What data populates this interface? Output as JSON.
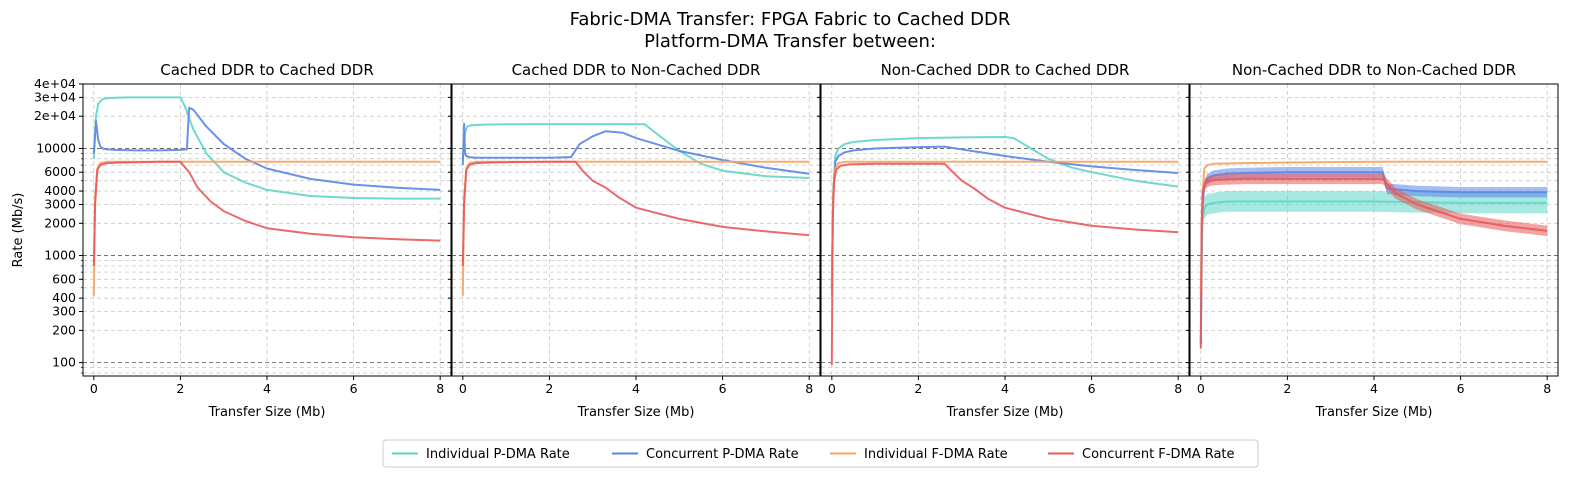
{
  "figure": {
    "title_line1": "Fabric-DMA Transfer: FPGA Fabric to Cached DDR",
    "title_line2": "Platform-DMA Transfer between:"
  },
  "legend": [
    {
      "label": "Individual P-DMA Rate",
      "color": "#5fd6c6"
    },
    {
      "label": "Concurrent P-DMA Rate",
      "color": "#5b86e5"
    },
    {
      "label": "Individual F-DMA Rate",
      "color": "#f7a25d"
    },
    {
      "label": "Concurrent F-DMA Rate",
      "color": "#e8595b"
    }
  ],
  "chart_data": [
    {
      "type": "line",
      "title": "Cached DDR to Cached DDR",
      "xlabel": "Transfer Size (Mb)",
      "ylabel": "Rate (Mb/s)",
      "xlim": [
        -0.25,
        8.25
      ],
      "xticks": [
        0,
        2,
        4,
        6,
        8
      ],
      "ylim": [
        75,
        40000
      ],
      "yscale": "log",
      "ytick_labels": [
        "100",
        "200",
        "300",
        "400",
        "600",
        "1000",
        "2000",
        "3000",
        "4000",
        "6000",
        "10000",
        "2e+04",
        "3e+04",
        "4e+04"
      ],
      "ytick_values": [
        100,
        200,
        300,
        400,
        600,
        1000,
        2000,
        3000,
        4000,
        6000,
        10000,
        20000,
        30000,
        40000
      ],
      "series": [
        {
          "name": "Individual P-DMA Rate",
          "x": [
            0,
            0.05,
            0.1,
            0.2,
            0.3,
            0.5,
            0.8,
            1.2,
            1.6,
            2.0,
            2.1,
            2.3,
            2.6,
            3.0,
            3.5,
            4.0,
            5.0,
            6.0,
            7.0,
            8.0
          ],
          "y": [
            8000,
            20000,
            26000,
            29000,
            29500,
            29800,
            30000,
            30000,
            30000,
            30000,
            25000,
            15000,
            9000,
            6000,
            4800,
            4100,
            3600,
            3450,
            3400,
            3400
          ]
        },
        {
          "name": "Concurrent P-DMA Rate",
          "x": [
            0,
            0.05,
            0.1,
            0.15,
            0.2,
            0.3,
            0.5,
            1.0,
            1.5,
            2.0,
            2.15,
            2.2,
            2.3,
            2.6,
            3.0,
            3.5,
            4.0,
            5.0,
            6.0,
            7.0,
            8.0
          ],
          "y": [
            9000,
            18000,
            12000,
            10500,
            10000,
            9800,
            9700,
            9600,
            9600,
            9700,
            9800,
            24000,
            23000,
            16000,
            11000,
            8000,
            6500,
            5200,
            4600,
            4300,
            4100
          ]
        },
        {
          "name": "Individual F-DMA Rate",
          "x": [
            0,
            0.03,
            0.08,
            0.15,
            0.3,
            1,
            2,
            4,
            6,
            8
          ],
          "y": [
            420,
            3500,
            6500,
            7300,
            7500,
            7500,
            7500,
            7500,
            7500,
            7500
          ]
        },
        {
          "name": "Concurrent F-DMA Rate",
          "x": [
            0,
            0.03,
            0.08,
            0.15,
            0.3,
            0.6,
            1.0,
            1.5,
            2.0,
            2.2,
            2.4,
            2.7,
            3.0,
            3.5,
            4.0,
            5.0,
            6.0,
            7.0,
            8.0
          ],
          "y": [
            800,
            3000,
            6300,
            7000,
            7300,
            7400,
            7450,
            7500,
            7500,
            6000,
            4300,
            3200,
            2600,
            2100,
            1800,
            1600,
            1480,
            1420,
            1380
          ]
        }
      ]
    },
    {
      "type": "line",
      "title": "Cached DDR to Non-Cached DDR",
      "xlabel": "Transfer Size (Mb)",
      "xlim": [
        -0.25,
        8.25
      ],
      "xticks": [
        0,
        2,
        4,
        6,
        8
      ],
      "ylim": [
        75,
        40000
      ],
      "yscale": "log",
      "series": [
        {
          "name": "Individual P-DMA Rate",
          "x": [
            0,
            0.05,
            0.1,
            0.2,
            0.5,
            1.0,
            2.0,
            3.0,
            4.0,
            4.2,
            4.5,
            5.0,
            5.5,
            6.0,
            7.0,
            8.0
          ],
          "y": [
            8000,
            14000,
            16000,
            16500,
            16700,
            16800,
            16900,
            16900,
            16900,
            16800,
            13500,
            9500,
            7200,
            6200,
            5500,
            5300
          ]
        },
        {
          "name": "Concurrent P-DMA Rate",
          "x": [
            0,
            0.03,
            0.05,
            0.08,
            0.15,
            0.3,
            0.5,
            1.0,
            1.5,
            2.0,
            2.5,
            2.7,
            3.0,
            3.3,
            3.7,
            4.0,
            5.0,
            6.0,
            7.0,
            8.0
          ],
          "y": [
            7000,
            17000,
            9000,
            8500,
            8300,
            8200,
            8200,
            8200,
            8200,
            8200,
            8300,
            11000,
            13000,
            14500,
            14000,
            12500,
            9500,
            7800,
            6600,
            5800
          ]
        },
        {
          "name": "Individual F-DMA Rate",
          "x": [
            0,
            0.03,
            0.08,
            0.15,
            0.3,
            1,
            2,
            4,
            6,
            8
          ],
          "y": [
            420,
            3500,
            6500,
            7300,
            7500,
            7500,
            7500,
            7500,
            7500,
            7500
          ]
        },
        {
          "name": "Concurrent F-DMA Rate",
          "x": [
            0,
            0.03,
            0.08,
            0.15,
            0.3,
            0.6,
            1.0,
            2.0,
            2.6,
            2.8,
            3.0,
            3.3,
            3.6,
            4.0,
            5.0,
            6.0,
            7.0,
            8.0
          ],
          "y": [
            800,
            3000,
            6300,
            7000,
            7300,
            7400,
            7450,
            7500,
            7500,
            6000,
            5000,
            4300,
            3500,
            2800,
            2200,
            1850,
            1680,
            1550
          ]
        }
      ]
    },
    {
      "type": "line",
      "title": "Non-Cached DDR to Cached DDR",
      "xlabel": "Transfer Size (Mb)",
      "xlim": [
        -0.25,
        8.25
      ],
      "xticks": [
        0,
        2,
        4,
        6,
        8
      ],
      "ylim": [
        75,
        40000
      ],
      "yscale": "log",
      "series": [
        {
          "name": "Individual P-DMA Rate",
          "x": [
            0,
            0.03,
            0.08,
            0.15,
            0.3,
            0.5,
            1.0,
            2.0,
            3.0,
            4.0,
            4.2,
            4.6,
            5.0,
            5.5,
            6.0,
            7.0,
            8.0
          ],
          "y": [
            500,
            3500,
            8500,
            10000,
            11000,
            11500,
            12000,
            12500,
            12700,
            12800,
            12500,
            10000,
            8000,
            6700,
            6000,
            5000,
            4400
          ]
        },
        {
          "name": "Concurrent P-DMA Rate",
          "x": [
            0,
            0.03,
            0.08,
            0.15,
            0.3,
            0.5,
            1.0,
            2.0,
            2.6,
            3.0,
            4.0,
            5.0,
            6.0,
            7.0,
            8.0
          ],
          "y": [
            500,
            3500,
            7500,
            8500,
            9200,
            9600,
            10000,
            10300,
            10400,
            9800,
            8500,
            7500,
            6800,
            6300,
            5900
          ]
        },
        {
          "name": "Individual F-DMA Rate",
          "x": [
            0,
            0.03,
            0.08,
            0.15,
            0.3,
            1,
            2,
            4,
            6,
            8
          ],
          "y": [
            420,
            3500,
            6500,
            7300,
            7500,
            7500,
            7500,
            7500,
            7500,
            7500
          ]
        },
        {
          "name": "Concurrent F-DMA Rate",
          "x": [
            0,
            0.02,
            0.05,
            0.1,
            0.2,
            0.4,
            1.0,
            2.0,
            2.6,
            2.8,
            3.0,
            3.3,
            3.6,
            4.0,
            5.0,
            6.0,
            7.0,
            8.0
          ],
          "y": [
            95,
            2000,
            5000,
            6300,
            6900,
            7100,
            7200,
            7200,
            7200,
            6000,
            5000,
            4200,
            3400,
            2800,
            2200,
            1900,
            1750,
            1650
          ]
        }
      ]
    },
    {
      "type": "line",
      "title": "Non-Cached DDR to Non-Cached DDR",
      "xlabel": "Transfer Size (Mb)",
      "xlim": [
        -0.25,
        8.25
      ],
      "xticks": [
        0,
        2,
        4,
        6,
        8
      ],
      "ylim": [
        75,
        40000
      ],
      "yscale": "log",
      "series": [
        {
          "name": "Individual P-DMA Rate",
          "x": [
            0,
            0.03,
            0.08,
            0.15,
            0.3,
            0.6,
            1.0,
            2.0,
            3.0,
            4.0,
            5.0,
            6.0,
            7.0,
            8.0
          ],
          "y": [
            150,
            1800,
            2800,
            3000,
            3100,
            3200,
            3200,
            3200,
            3200,
            3200,
            3150,
            3100,
            3100,
            3100
          ],
          "band": 0.25
        },
        {
          "name": "Concurrent P-DMA Rate",
          "x": [
            0,
            0.03,
            0.08,
            0.15,
            0.3,
            0.6,
            1.0,
            2.0,
            3.0,
            4.0,
            4.2,
            4.3,
            5.0,
            6.0,
            7.0,
            8.0
          ],
          "y": [
            150,
            2500,
            4500,
            5200,
            5600,
            5800,
            5900,
            6000,
            6000,
            6000,
            6000,
            4200,
            4000,
            3900,
            3900,
            3900
          ],
          "band": 0.12
        },
        {
          "name": "Individual F-DMA Rate",
          "x": [
            0,
            0.03,
            0.08,
            0.15,
            0.3,
            1,
            2,
            4,
            6,
            8
          ],
          "y": [
            420,
            3500,
            6500,
            7000,
            7200,
            7300,
            7400,
            7500,
            7500,
            7500
          ]
        },
        {
          "name": "Concurrent F-DMA Rate",
          "x": [
            0,
            0.02,
            0.05,
            0.1,
            0.2,
            0.4,
            1.0,
            2.0,
            3.0,
            4.0,
            4.2,
            4.5,
            5.0,
            6.0,
            7.0,
            8.0
          ],
          "y": [
            135,
            2000,
            4000,
            4700,
            5000,
            5100,
            5200,
            5200,
            5200,
            5200,
            5200,
            3800,
            3000,
            2200,
            1900,
            1700
          ],
          "band": 0.12
        }
      ]
    }
  ]
}
